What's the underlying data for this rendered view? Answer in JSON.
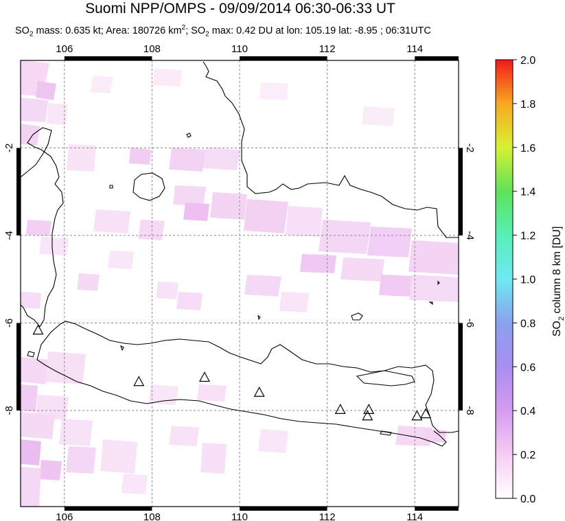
{
  "title": "Suomi NPP/OMPS - 09/09/2014 06:30-06:33 UT",
  "subtitle": {
    "part1": "SO",
    "sub1": "2",
    "part2": " mass: 0.635 kt; Area: 180726 km",
    "sup": "2",
    "part3": "; SO",
    "sub2": "2",
    "part4": " max: 0.42 DU at lon: 105.19 lat: -8.95 ; 06:31UTC"
  },
  "map": {
    "lon_range": [
      105,
      115
    ],
    "lat_range": [
      -10.2,
      0.2
    ],
    "lon_ticks": [
      "106",
      "108",
      "110",
      "112",
      "114"
    ],
    "lat_ticks_left": [
      "-2",
      "-4",
      "-6",
      "-8"
    ],
    "lat_ticks_right": [
      "-2",
      "-4",
      "-6",
      "-8"
    ],
    "grid": "dashed",
    "volcano_marker": "triangle-icon",
    "volcanoes": [
      {
        "lon": 105.4,
        "lat": -6.1
      },
      {
        "lon": 107.7,
        "lat": -7.3
      },
      {
        "lon": 109.2,
        "lat": -7.2
      },
      {
        "lon": 110.45,
        "lat": -7.55
      },
      {
        "lon": 112.3,
        "lat": -7.95
      },
      {
        "lon": 112.95,
        "lat": -7.95
      },
      {
        "lon": 112.92,
        "lat": -8.1
      },
      {
        "lon": 114.05,
        "lat": -8.1
      },
      {
        "lon": 114.25,
        "lat": -8.05
      }
    ]
  },
  "colorbar": {
    "label": "SO",
    "label_sub": "2",
    "label_rest": " column 8 km [DU]",
    "ticks": [
      "0.0",
      "0.2",
      "0.4",
      "0.6",
      "0.8",
      "1.0",
      "1.2",
      "1.4",
      "1.6",
      "1.8",
      "2.0"
    ],
    "range": [
      0,
      2
    ],
    "colors": [
      "#ffffff",
      "#f4c4f2",
      "#c78cf0",
      "#8e97f0",
      "#6fe3f3",
      "#59f0a6",
      "#5ae25a",
      "#c8f034",
      "#f8d324",
      "#f7791d",
      "#f21a1a"
    ]
  }
}
